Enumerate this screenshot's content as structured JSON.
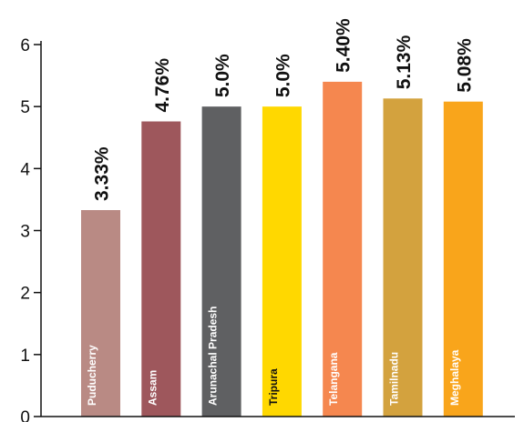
{
  "chart_data": {
    "type": "bar",
    "categories": [
      "Puducherry",
      "Assam",
      "Arunachal Pradesh",
      "Tripura",
      "Telangana",
      "Tamilnadu",
      "Meghalaya"
    ],
    "values": [
      3.33,
      4.76,
      5.0,
      5.0,
      5.4,
      5.13,
      5.08
    ],
    "value_labels": [
      "3.33%",
      "4.76%",
      "5.0%",
      "5.0%",
      "5.40%",
      "5.13%",
      "5.08%"
    ],
    "colors": [
      "#b98a84",
      "#9e575c",
      "#5f6062",
      "#ffd800",
      "#f5874f",
      "#d3a23e",
      "#f9a51b"
    ],
    "label_colors": [
      "#ffffff",
      "#ffffff",
      "#ffffff",
      "#111111",
      "#ffffff",
      "#ffffff",
      "#ffffff"
    ],
    "yticks": [
      "0",
      "1",
      "2",
      "3",
      "4",
      "5",
      "6"
    ],
    "ylim": [
      0,
      6
    ],
    "title": "",
    "xlabel": "",
    "ylabel": "",
    "grid": false,
    "legend": "none"
  }
}
